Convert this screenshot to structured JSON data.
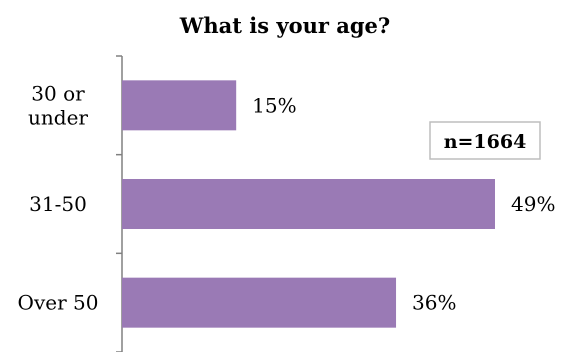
{
  "chart_data": {
    "type": "bar",
    "orientation": "horizontal",
    "title": "What is your age?",
    "categories": [
      "30 or under",
      "31-50",
      "Over 50"
    ],
    "category_lines": [
      [
        "30 or",
        "under"
      ],
      [
        "31-50"
      ],
      [
        "Over 50"
      ]
    ],
    "values": [
      15,
      49,
      36
    ],
    "value_labels": [
      "15%",
      "49%",
      "36%"
    ],
    "bar_color": "#9A7AB5",
    "xlim": [
      0,
      50
    ],
    "grid": false,
    "annotation": "n=1664"
  }
}
